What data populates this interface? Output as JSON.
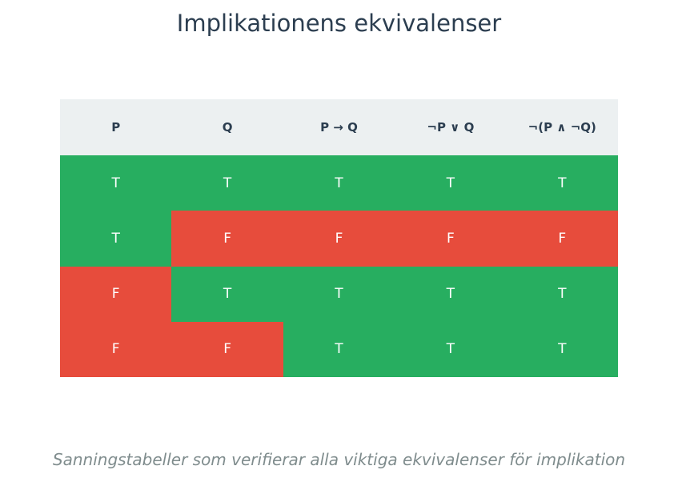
{
  "title": "Implikationens ekvivalenser",
  "subtitle": "Sanningstabeller som verifierar alla viktiga ekvivalenser för implikation",
  "colors": {
    "true": "#27ae60",
    "false": "#e74c3c",
    "header_bg": "#ecf0f1",
    "header_text": "#2c3e50",
    "title_text": "#2c3e50",
    "subtitle_text": "#7f8c8d"
  },
  "chart_data": {
    "type": "table",
    "title": "Implikationens ekvivalenser",
    "columns": [
      "P",
      "Q",
      "P → Q",
      "¬P ∨ Q",
      "¬(P ∧ ¬Q)"
    ],
    "rows": [
      [
        "T",
        "T",
        "T",
        "T",
        "T"
      ],
      [
        "T",
        "F",
        "F",
        "F",
        "F"
      ],
      [
        "F",
        "T",
        "T",
        "T",
        "T"
      ],
      [
        "F",
        "F",
        "T",
        "T",
        "T"
      ]
    ]
  }
}
